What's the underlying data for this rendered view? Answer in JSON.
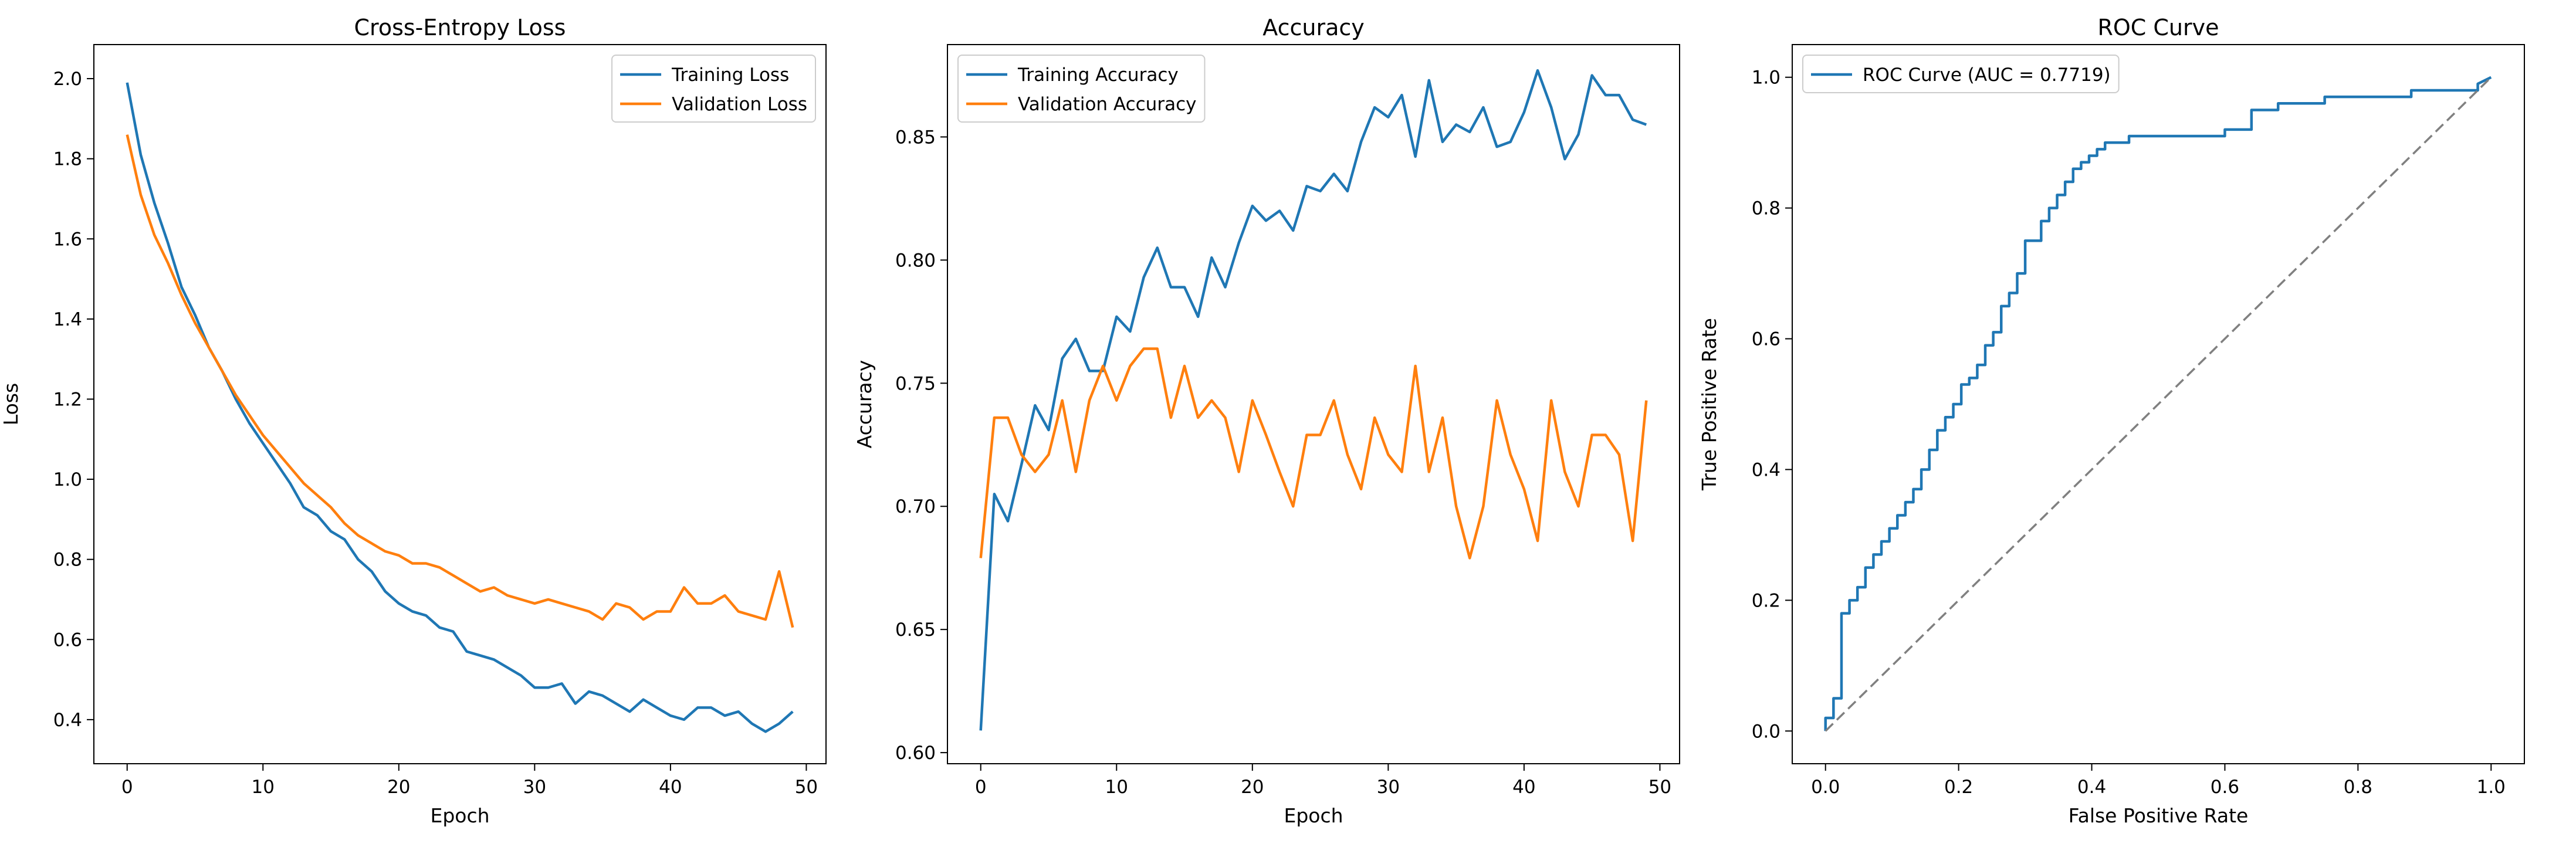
{
  "colors": {
    "training": "#1f77b4",
    "validation": "#ff7f0e",
    "diagonal": "#808080"
  },
  "chart_data": [
    {
      "id": "loss",
      "type": "line",
      "title": "Cross-Entropy Loss",
      "xlabel": "Epoch",
      "ylabel": "Loss",
      "xlim": [
        -2.45,
        51.45
      ],
      "ylim": [
        0.29,
        2.085
      ],
      "xticks": [
        0,
        10,
        20,
        30,
        40,
        50
      ],
      "yticks": [
        0.4,
        0.6,
        0.8,
        1.0,
        1.2,
        1.4,
        1.6,
        1.8,
        2.0
      ],
      "ytick_labels": [
        "0.4",
        "0.6",
        "0.8",
        "1.0",
        "1.2",
        "1.4",
        "1.6",
        "1.8",
        "2.0"
      ],
      "legend_loc": "upper-right",
      "series": [
        {
          "name": "Training Loss",
          "color": "#1f77b4",
          "x": [
            0,
            1,
            2,
            3,
            4,
            5,
            6,
            7,
            8,
            9,
            10,
            11,
            12,
            13,
            14,
            15,
            16,
            17,
            18,
            19,
            20,
            21,
            22,
            23,
            24,
            25,
            26,
            27,
            28,
            29,
            30,
            31,
            32,
            33,
            34,
            35,
            36,
            37,
            38,
            39,
            40,
            41,
            42,
            43,
            44,
            45,
            46,
            47,
            48,
            49
          ],
          "y": [
            1.99,
            1.81,
            1.69,
            1.59,
            1.48,
            1.41,
            1.33,
            1.27,
            1.2,
            1.14,
            1.09,
            1.04,
            0.99,
            0.93,
            0.91,
            0.87,
            0.85,
            0.8,
            0.77,
            0.72,
            0.69,
            0.67,
            0.66,
            0.63,
            0.62,
            0.57,
            0.56,
            0.55,
            0.53,
            0.51,
            0.48,
            0.48,
            0.49,
            0.44,
            0.47,
            0.46,
            0.44,
            0.42,
            0.45,
            0.43,
            0.41,
            0.4,
            0.43,
            0.43,
            0.41,
            0.42,
            0.39,
            0.37,
            0.39,
            0.42
          ]
        },
        {
          "name": "Validation Loss",
          "color": "#ff7f0e",
          "x": [
            0,
            1,
            2,
            3,
            4,
            5,
            6,
            7,
            8,
            9,
            10,
            11,
            12,
            13,
            14,
            15,
            16,
            17,
            18,
            19,
            20,
            21,
            22,
            23,
            24,
            25,
            26,
            27,
            28,
            29,
            30,
            31,
            32,
            33,
            34,
            35,
            36,
            37,
            38,
            39,
            40,
            41,
            42,
            43,
            44,
            45,
            46,
            47,
            48,
            49
          ],
          "y": [
            1.86,
            1.71,
            1.61,
            1.54,
            1.46,
            1.39,
            1.33,
            1.27,
            1.21,
            1.16,
            1.11,
            1.07,
            1.03,
            0.99,
            0.96,
            0.93,
            0.89,
            0.86,
            0.84,
            0.82,
            0.81,
            0.79,
            0.79,
            0.78,
            0.76,
            0.74,
            0.72,
            0.73,
            0.71,
            0.7,
            0.69,
            0.7,
            0.69,
            0.68,
            0.67,
            0.65,
            0.69,
            0.68,
            0.65,
            0.67,
            0.67,
            0.73,
            0.69,
            0.69,
            0.71,
            0.67,
            0.66,
            0.65,
            0.77,
            0.63
          ]
        }
      ]
    },
    {
      "id": "acc",
      "type": "line",
      "title": "Accuracy",
      "xlabel": "Epoch",
      "ylabel": "Accuracy",
      "xlim": [
        -2.45,
        51.45
      ],
      "ylim": [
        0.5955,
        0.8875
      ],
      "xticks": [
        0,
        10,
        20,
        30,
        40,
        50
      ],
      "yticks": [
        0.6,
        0.65,
        0.7,
        0.75,
        0.8,
        0.85
      ],
      "ytick_labels": [
        "0.60",
        "0.65",
        "0.70",
        "0.75",
        "0.80",
        "0.85"
      ],
      "legend_loc": "upper-left",
      "series": [
        {
          "name": "Training Accuracy",
          "color": "#1f77b4",
          "x": [
            0,
            1,
            2,
            3,
            4,
            5,
            6,
            7,
            8,
            9,
            10,
            11,
            12,
            13,
            14,
            15,
            16,
            17,
            18,
            19,
            20,
            21,
            22,
            23,
            24,
            25,
            26,
            27,
            28,
            29,
            30,
            31,
            32,
            33,
            34,
            35,
            36,
            37,
            38,
            39,
            40,
            41,
            42,
            43,
            44,
            45,
            46,
            47,
            48,
            49
          ],
          "y": [
            0.609,
            0.705,
            0.694,
            0.717,
            0.741,
            0.731,
            0.76,
            0.768,
            0.755,
            0.755,
            0.777,
            0.771,
            0.793,
            0.805,
            0.789,
            0.789,
            0.777,
            0.801,
            0.789,
            0.807,
            0.822,
            0.816,
            0.82,
            0.812,
            0.83,
            0.828,
            0.835,
            0.828,
            0.848,
            0.862,
            0.858,
            0.867,
            0.842,
            0.873,
            0.848,
            0.855,
            0.852,
            0.862,
            0.846,
            0.848,
            0.86,
            0.877,
            0.862,
            0.841,
            0.851,
            0.875,
            0.867,
            0.867,
            0.857,
            0.855
          ]
        },
        {
          "name": "Validation Accuracy",
          "color": "#ff7f0e",
          "x": [
            0,
            1,
            2,
            3,
            4,
            5,
            6,
            7,
            8,
            9,
            10,
            11,
            12,
            13,
            14,
            15,
            16,
            17,
            18,
            19,
            20,
            21,
            22,
            23,
            24,
            25,
            26,
            27,
            28,
            29,
            30,
            31,
            32,
            33,
            34,
            35,
            36,
            37,
            38,
            39,
            40,
            41,
            42,
            43,
            44,
            45,
            46,
            47,
            48,
            49
          ],
          "y": [
            0.679,
            0.736,
            0.736,
            0.721,
            0.714,
            0.721,
            0.743,
            0.714,
            0.743,
            0.757,
            0.743,
            0.757,
            0.764,
            0.764,
            0.736,
            0.757,
            0.736,
            0.743,
            0.736,
            0.714,
            0.743,
            0.729,
            0.714,
            0.7,
            0.729,
            0.729,
            0.743,
            0.721,
            0.707,
            0.736,
            0.721,
            0.714,
            0.757,
            0.714,
            0.736,
            0.7,
            0.679,
            0.7,
            0.743,
            0.721,
            0.707,
            0.686,
            0.743,
            0.714,
            0.7,
            0.729,
            0.729,
            0.721,
            0.686,
            0.743
          ]
        }
      ]
    },
    {
      "id": "roc",
      "type": "line",
      "title": "ROC Curve",
      "xlabel": "False Positive Rate",
      "ylabel": "True Positive Rate",
      "xlim": [
        -0.05,
        1.05
      ],
      "ylim": [
        -0.05,
        1.05
      ],
      "xticks": [
        0.0,
        0.2,
        0.4,
        0.6,
        0.8,
        1.0
      ],
      "xtick_labels": [
        "0.0",
        "0.2",
        "0.4",
        "0.6",
        "0.8",
        "1.0"
      ],
      "yticks": [
        0.0,
        0.2,
        0.4,
        0.6,
        0.8,
        1.0
      ],
      "ytick_labels": [
        "0.0",
        "0.2",
        "0.4",
        "0.6",
        "0.8",
        "1.0"
      ],
      "legend_loc": "upper-left",
      "series": [
        {
          "name": "ROC Curve (AUC = 0.7719)",
          "color": "#1f77b4",
          "step": true,
          "x": [
            0.0,
            0.0,
            0.012,
            0.012,
            0.024,
            0.024,
            0.036,
            0.036,
            0.048,
            0.048,
            0.06,
            0.06,
            0.072,
            0.072,
            0.084,
            0.084,
            0.096,
            0.096,
            0.108,
            0.108,
            0.12,
            0.12,
            0.132,
            0.132,
            0.144,
            0.144,
            0.156,
            0.156,
            0.168,
            0.168,
            0.18,
            0.18,
            0.192,
            0.192,
            0.204,
            0.204,
            0.216,
            0.216,
            0.228,
            0.228,
            0.24,
            0.24,
            0.252,
            0.252,
            0.264,
            0.264,
            0.276,
            0.276,
            0.288,
            0.288,
            0.3,
            0.3,
            0.324,
            0.324,
            0.336,
            0.336,
            0.348,
            0.348,
            0.36,
            0.36,
            0.372,
            0.372,
            0.384,
            0.384,
            0.396,
            0.396,
            0.408,
            0.408,
            0.42,
            0.42,
            0.456,
            0.456,
            0.6,
            0.6,
            0.64,
            0.64,
            0.68,
            0.68,
            0.75,
            0.75,
            0.88,
            0.88,
            0.98,
            0.98,
            1.0
          ],
          "y": [
            0.0,
            0.02,
            0.02,
            0.05,
            0.05,
            0.18,
            0.18,
            0.2,
            0.2,
            0.22,
            0.22,
            0.25,
            0.25,
            0.27,
            0.27,
            0.29,
            0.29,
            0.31,
            0.31,
            0.33,
            0.33,
            0.35,
            0.35,
            0.37,
            0.37,
            0.4,
            0.4,
            0.43,
            0.43,
            0.46,
            0.46,
            0.48,
            0.48,
            0.5,
            0.5,
            0.53,
            0.53,
            0.54,
            0.54,
            0.56,
            0.56,
            0.59,
            0.59,
            0.61,
            0.61,
            0.65,
            0.65,
            0.67,
            0.67,
            0.7,
            0.7,
            0.75,
            0.75,
            0.78,
            0.78,
            0.8,
            0.8,
            0.82,
            0.82,
            0.84,
            0.84,
            0.86,
            0.86,
            0.87,
            0.87,
            0.88,
            0.88,
            0.89,
            0.89,
            0.9,
            0.9,
            0.91,
            0.91,
            0.92,
            0.92,
            0.95,
            0.95,
            0.96,
            0.96,
            0.97,
            0.97,
            0.98,
            0.98,
            0.99,
            1.0
          ]
        },
        {
          "name": "",
          "color": "#808080",
          "dashed": true,
          "x": [
            0.0,
            1.0
          ],
          "y": [
            0.0,
            1.0
          ]
        }
      ]
    }
  ]
}
